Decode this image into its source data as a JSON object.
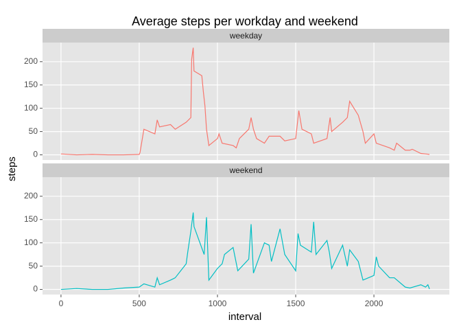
{
  "title": "Average steps per workday and weekend",
  "x_label": "interval",
  "y_label": "steps",
  "chart_data": [
    {
      "type": "line",
      "facet": "weekday",
      "color": "#F8766D",
      "grid": true,
      "x": [
        0,
        100,
        200,
        300,
        400,
        500,
        505,
        530,
        600,
        615,
        630,
        700,
        730,
        800,
        830,
        835,
        845,
        850,
        900,
        910,
        920,
        930,
        945,
        1000,
        1010,
        1030,
        1100,
        1120,
        1140,
        1200,
        1215,
        1230,
        1250,
        1300,
        1330,
        1400,
        1430,
        1500,
        1520,
        1540,
        1600,
        1615,
        1700,
        1720,
        1730,
        1800,
        1830,
        1845,
        1900,
        1930,
        1945,
        2000,
        2015,
        2100,
        2130,
        2145,
        2200,
        2230,
        2245,
        2300,
        2330,
        2355
      ],
      "values": [
        2,
        0,
        1,
        0,
        0,
        1,
        5,
        55,
        45,
        75,
        60,
        65,
        55,
        70,
        80,
        205,
        230,
        180,
        170,
        135,
        105,
        55,
        20,
        35,
        45,
        25,
        20,
        15,
        35,
        55,
        80,
        55,
        35,
        25,
        40,
        40,
        30,
        35,
        95,
        55,
        45,
        25,
        35,
        80,
        50,
        70,
        80,
        115,
        85,
        50,
        25,
        45,
        25,
        15,
        10,
        25,
        10,
        10,
        12,
        3,
        2,
        1
      ],
      "xlim": [
        -118,
        2482
      ],
      "ylim": [
        -11,
        241
      ],
      "xticks": [
        0,
        500,
        1000,
        1500,
        2000
      ],
      "yticks": [
        0,
        50,
        100,
        150,
        200
      ]
    },
    {
      "type": "line",
      "facet": "weekend",
      "color": "#00BFC4",
      "grid": true,
      "x": [
        0,
        100,
        200,
        300,
        400,
        500,
        530,
        600,
        615,
        630,
        700,
        730,
        800,
        810,
        830,
        845,
        850,
        915,
        930,
        945,
        1000,
        1030,
        1045,
        1100,
        1130,
        1200,
        1215,
        1230,
        1300,
        1330,
        1345,
        1400,
        1430,
        1500,
        1515,
        1530,
        1600,
        1615,
        1630,
        1700,
        1715,
        1730,
        1800,
        1830,
        1845,
        1900,
        1930,
        2000,
        2015,
        2030,
        2100,
        2130,
        2200,
        2230,
        2300,
        2330,
        2345,
        2355
      ],
      "values": [
        0,
        2,
        0,
        0,
        3,
        5,
        12,
        5,
        25,
        10,
        20,
        25,
        55,
        80,
        125,
        165,
        135,
        75,
        155,
        20,
        45,
        55,
        75,
        90,
        40,
        65,
        140,
        35,
        100,
        95,
        60,
        130,
        75,
        40,
        120,
        95,
        80,
        145,
        75,
        105,
        80,
        45,
        95,
        50,
        85,
        60,
        20,
        30,
        70,
        50,
        25,
        25,
        5,
        3,
        10,
        5,
        10,
        1
      ],
      "xlim": [
        -118,
        2482
      ],
      "ylim": [
        -11,
        241
      ],
      "xticks": [
        0,
        500,
        1000,
        1500,
        2000
      ],
      "yticks": [
        0,
        50,
        100,
        150,
        200
      ]
    }
  ]
}
